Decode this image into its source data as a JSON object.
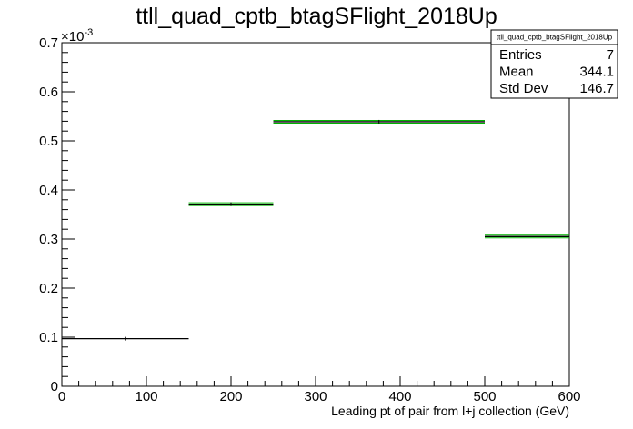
{
  "chart_data": {
    "type": "histogram",
    "title": "ttll_quad_cptb_btagSFlight_2018Up",
    "xlabel": "Leading pt of pair from l+j collection (GeV)",
    "ylabel": "",
    "y_exponent_label": "×10",
    "y_exponent": "-3",
    "xlim": [
      0,
      600
    ],
    "ylim": [
      0,
      0.7
    ],
    "x_ticks": [
      "0",
      "100",
      "200",
      "300",
      "400",
      "500",
      "600"
    ],
    "y_ticks": [
      "0",
      "0.1",
      "0.2",
      "0.3",
      "0.4",
      "0.5",
      "0.6",
      "0.7"
    ],
    "bins": [
      {
        "x_low": 0,
        "x_high": 150,
        "value": 0.097
      },
      {
        "x_low": 150,
        "x_high": 250,
        "value": 0.371
      },
      {
        "x_low": 250,
        "x_high": 500,
        "value": 0.539
      },
      {
        "x_low": 500,
        "x_high": 600,
        "value": 0.305
      }
    ],
    "stats_box": {
      "name": "ttll_quad_cptb_btagSFlight_2018Up",
      "rows": [
        {
          "label": "Entries",
          "value": "7"
        },
        {
          "label": "Mean",
          "value": "344.1"
        },
        {
          "label": "Std Dev",
          "value": "146.7"
        }
      ]
    },
    "colors": {
      "line": "#000000",
      "band": "#00b400"
    }
  }
}
